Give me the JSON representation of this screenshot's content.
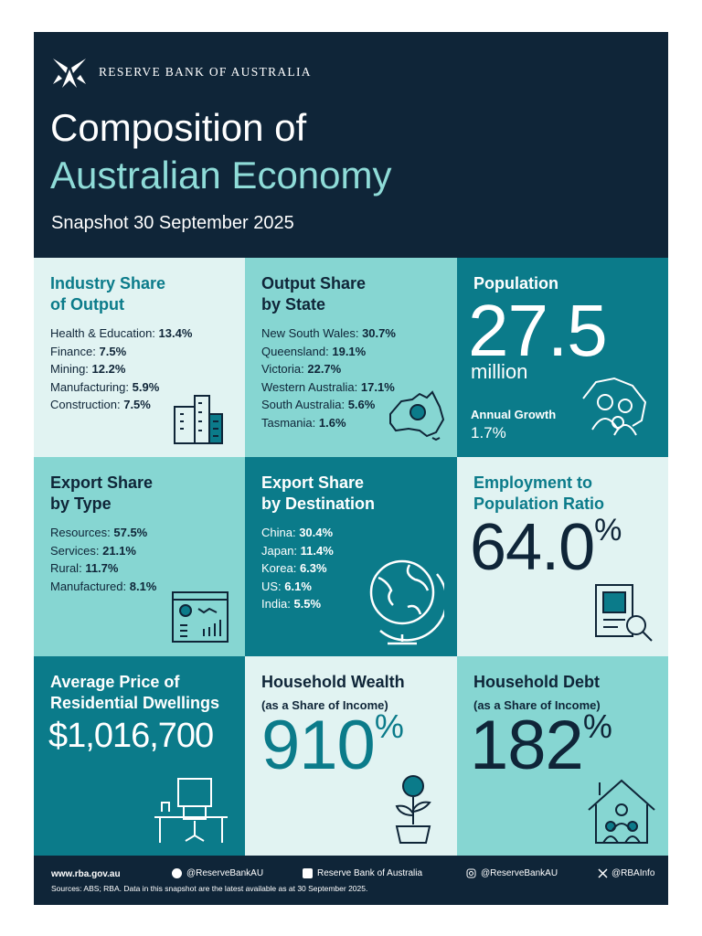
{
  "header": {
    "organization": "RESERVE BANK OF AUSTRALIA",
    "title_line1": "Composition of",
    "title_line2": "Australian Economy",
    "subtitle": "Snapshot 30 September 2025"
  },
  "industry": {
    "title": [
      "Industry Share",
      "of Output"
    ],
    "items": [
      {
        "label": "Health & Education:",
        "value": "13.4%"
      },
      {
        "label": "Finance:",
        "value": "7.5%"
      },
      {
        "label": "Mining:",
        "value": "12.2%"
      },
      {
        "label": "Manufacturing:",
        "value": "5.9%"
      },
      {
        "label": "Construction:",
        "value": "7.5%"
      }
    ]
  },
  "state": {
    "title": [
      "Output Share",
      "by State"
    ],
    "items": [
      {
        "label": "New South Wales:",
        "value": "30.7%"
      },
      {
        "label": "Queensland:",
        "value": "19.1%"
      },
      {
        "label": "Victoria:",
        "value": "22.7%"
      },
      {
        "label": "Western Australia:",
        "value": "17.1%"
      },
      {
        "label": "South Australia:",
        "value": "5.6%"
      },
      {
        "label": "Tasmania:",
        "value": "1.6%"
      }
    ]
  },
  "population": {
    "title": "Population",
    "value": "27.5",
    "unit": "million",
    "growth_label": "Annual Growth",
    "growth_value": "1.7%"
  },
  "export_type": {
    "title": [
      "Export Share",
      "by Type"
    ],
    "items": [
      {
        "label": "Resources:",
        "value": "57.5%"
      },
      {
        "label": "Services:",
        "value": "21.1%"
      },
      {
        "label": "Rural:",
        "value": "11.7%"
      },
      {
        "label": "Manufactured:",
        "value": "8.1%"
      }
    ]
  },
  "export_destination": {
    "title": [
      "Export Share",
      "by Destination"
    ],
    "items": [
      {
        "label": "China:",
        "value": "30.4%"
      },
      {
        "label": "Japan:",
        "value": "11.4%"
      },
      {
        "label": "Korea:",
        "value": "6.3%"
      },
      {
        "label": "US:",
        "value": "6.1%"
      },
      {
        "label": "India:",
        "value": "5.5%"
      }
    ]
  },
  "employment": {
    "title": [
      "Employment to",
      "Population Ratio"
    ],
    "value": "64.0",
    "unit": "%"
  },
  "dwellings": {
    "title": [
      "Average Price of",
      "Residential Dwellings"
    ],
    "value": "$1,016,700"
  },
  "wealth": {
    "title": "Household Wealth",
    "subtitle": "(as a Share of Income)",
    "value": "910",
    "unit": "%"
  },
  "debt": {
    "title": "Household Debt",
    "subtitle": "(as a Share of Income)",
    "value": "182",
    "unit": "%"
  },
  "footer": {
    "website": "www.rba.gov.au",
    "facebook": "@ReserveBankAU",
    "linkedin": "Reserve Bank of Australia",
    "instagram": "@ReserveBankAU",
    "x": "@RBAInfo",
    "sources": "Sources: ABS; RBA. Data in this snapshot are the latest available as at 30 September 2025."
  }
}
